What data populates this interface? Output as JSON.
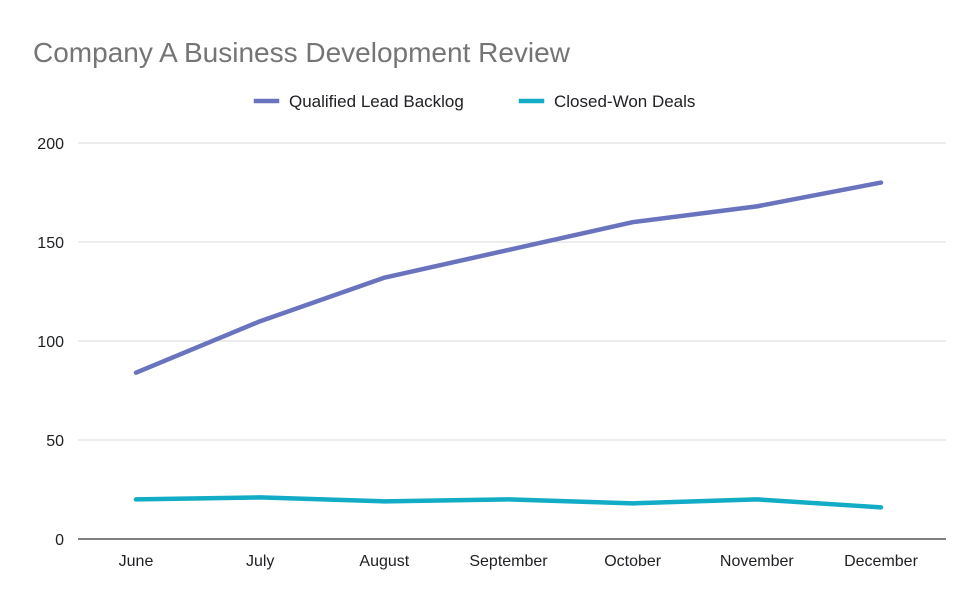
{
  "chart_data": {
    "type": "line",
    "title": "Company A Business Development Review",
    "categories": [
      "June",
      "July",
      "August",
      "September",
      "October",
      "November",
      "December"
    ],
    "series": [
      {
        "name": "Qualified Lead Backlog",
        "values": [
          84,
          110,
          132,
          146,
          160,
          168,
          180
        ],
        "color": "#6a73be"
      },
      {
        "name": "Closed-Won Deals",
        "values": [
          20,
          21,
          19,
          20,
          18,
          20,
          16
        ],
        "color": "#12acc6"
      }
    ],
    "ylim": [
      0,
      200
    ],
    "yticks": [
      "0",
      "50",
      "100",
      "150",
      "200"
    ],
    "legend": "top",
    "grid": true
  }
}
